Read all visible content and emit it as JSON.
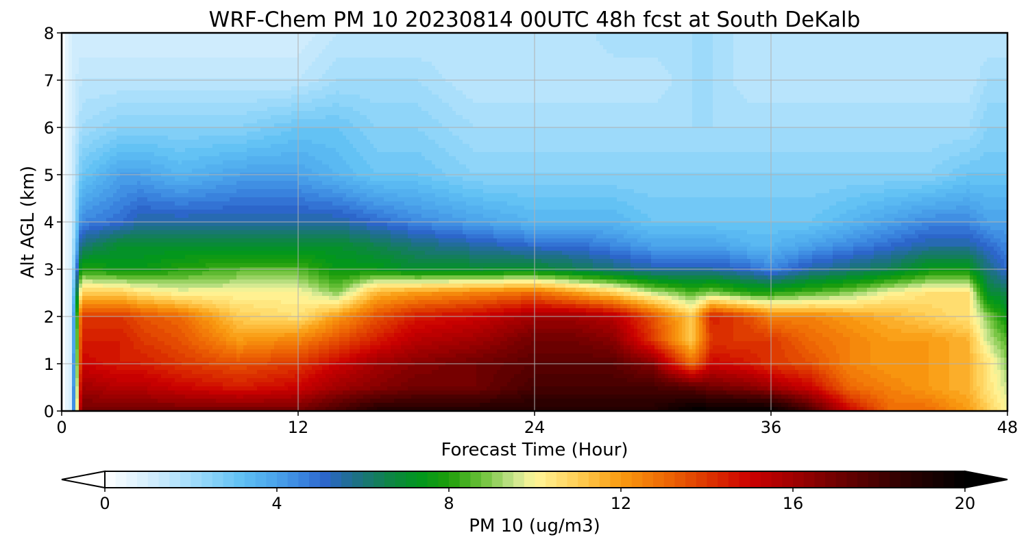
{
  "chart_data": {
    "type": "heatmap",
    "title": "WRF-Chem PM 10  20230814 00UTC 48h fcst at South DeKalb",
    "xlabel": "Forecast Time (Hour)",
    "ylabel": "Alt AGL (km)",
    "xlim": [
      0,
      48
    ],
    "ylim": [
      0,
      8
    ],
    "xticks": [
      0,
      12,
      24,
      36,
      48
    ],
    "yticks": [
      0,
      1,
      2,
      3,
      4,
      5,
      6,
      7,
      8
    ],
    "grid": true,
    "x_hours": [
      0,
      0.5,
      1,
      3,
      4,
      6,
      9,
      12,
      14,
      16,
      18,
      21,
      24,
      26,
      28,
      30,
      32,
      33,
      35,
      36,
      38,
      40,
      42,
      44,
      46,
      47,
      48
    ],
    "y_km": [
      0,
      0.5,
      1,
      1.5,
      2,
      2.5,
      3,
      3.5,
      4,
      5,
      6,
      7,
      8
    ],
    "values": [
      [
        0,
        1,
        17,
        17,
        17,
        17,
        17,
        17,
        18,
        19,
        19,
        19,
        19,
        19,
        19,
        19,
        20,
        20,
        20,
        20,
        18,
        15,
        13,
        13,
        12,
        11,
        10
      ],
      [
        0,
        1,
        16,
        15.5,
        15.5,
        15,
        14.5,
        15,
        16,
        16.5,
        17,
        17,
        18,
        18,
        18,
        18,
        17.5,
        17,
        16.5,
        16,
        15,
        13,
        12.5,
        12,
        11.5,
        10.5,
        9.5
      ],
      [
        0,
        1,
        15,
        14.5,
        14.5,
        14,
        13.5,
        14,
        15,
        16,
        16.5,
        17,
        17.5,
        17.5,
        17.5,
        16.5,
        13,
        15,
        14.5,
        14,
        13.5,
        12.5,
        12,
        12,
        11.5,
        10.5,
        9
      ],
      [
        0,
        1,
        14.5,
        14.5,
        14,
        13.5,
        12,
        12.5,
        13.5,
        14.5,
        15.5,
        16,
        17,
        17,
        16.5,
        14,
        11,
        14,
        14,
        14,
        13,
        12.5,
        12,
        12,
        11.5,
        9.5,
        8.5
      ],
      [
        0,
        1,
        14,
        14,
        13.5,
        13,
        11,
        10.5,
        12,
        13.5,
        14.5,
        15,
        16,
        16,
        15.5,
        13.5,
        11,
        14.5,
        13.5,
        12.5,
        12.5,
        12,
        11.5,
        11,
        10.5,
        9,
        7.5
      ],
      [
        0,
        1,
        11,
        11,
        10.5,
        10,
        10,
        10,
        9,
        11.5,
        12,
        12.5,
        13,
        12,
        11,
        9.5,
        8.5,
        9,
        8,
        8,
        8.5,
        9,
        10,
        10.5,
        10.5,
        7,
        6.5
      ],
      [
        0,
        1,
        8,
        7.5,
        7.5,
        8,
        8.5,
        8.5,
        7.5,
        7.5,
        7,
        7,
        7,
        6.5,
        6,
        5.5,
        5.5,
        5.5,
        5,
        4.5,
        5.5,
        6,
        6.5,
        7.5,
        7.5,
        6,
        5
      ],
      [
        0,
        1,
        6,
        7,
        7,
        7,
        7,
        7,
        7,
        6.5,
        6,
        5.5,
        5,
        5,
        4.5,
        4,
        4,
        4,
        3.5,
        3.5,
        4,
        4.5,
        5,
        5.5,
        5.5,
        5,
        4.5
      ],
      [
        0,
        1,
        4.5,
        5,
        5.5,
        5.5,
        5.5,
        5.5,
        5.5,
        5,
        4.5,
        4,
        3.5,
        3.5,
        3.5,
        3,
        3,
        3,
        3,
        3,
        3,
        3.5,
        4,
        4.5,
        4.5,
        4,
        4
      ],
      [
        0,
        1,
        3,
        4,
        4,
        3.5,
        4,
        4,
        3.5,
        3,
        3,
        2.5,
        2.5,
        2.5,
        2.5,
        2.5,
        2.5,
        2.5,
        2.5,
        2.5,
        2.5,
        2.5,
        2.5,
        2.5,
        3,
        3,
        3
      ],
      [
        0,
        1,
        2,
        2.5,
        2.5,
        2.5,
        2.5,
        3,
        3,
        2.5,
        2.5,
        2,
        2,
        2,
        2,
        2,
        2,
        2,
        2,
        2,
        2,
        2,
        2,
        2,
        2,
        2.5,
        2.5
      ],
      [
        0,
        1,
        1.5,
        1.5,
        1.5,
        1.5,
        1.5,
        1.5,
        2,
        2,
        2,
        1.5,
        1.5,
        1.5,
        1.5,
        1.5,
        2,
        2,
        1.5,
        1.5,
        1.5,
        1.5,
        1.5,
        1.5,
        1.5,
        2,
        2
      ],
      [
        0,
        1,
        1,
        1,
        1,
        1,
        1,
        1,
        1.5,
        1.5,
        1.5,
        1.5,
        1.5,
        1.5,
        2,
        2,
        2,
        2,
        1.5,
        1.5,
        1.5,
        1.5,
        1.5,
        1.5,
        1.5,
        1.5,
        1.5
      ]
    ],
    "colorbar": {
      "label": "PM 10  (ug/m3)",
      "min": 0,
      "max": 20,
      "ticks": [
        0,
        4,
        8,
        12,
        16,
        20
      ],
      "extend": "both",
      "levels": 80
    },
    "colormap": [
      [
        0,
        "#ffffff"
      ],
      [
        0.5,
        "#eaf7fe"
      ],
      [
        1.5,
        "#bfe6fc"
      ],
      [
        2.5,
        "#88d2f8"
      ],
      [
        3.2,
        "#5ec0f4"
      ],
      [
        4,
        "#4aa2ea"
      ],
      [
        4.6,
        "#3a84de"
      ],
      [
        5.1,
        "#2d66cc"
      ],
      [
        5.8,
        "#1f6f8a"
      ],
      [
        6.6,
        "#0f8448"
      ],
      [
        7.3,
        "#00961e"
      ],
      [
        8,
        "#1e9e0a"
      ],
      [
        8.8,
        "#70c23c"
      ],
      [
        9.5,
        "#c7e48e"
      ],
      [
        10,
        "#fff699"
      ],
      [
        11,
        "#ffce55"
      ],
      [
        12,
        "#f99b10"
      ],
      [
        13,
        "#ef6a05"
      ],
      [
        14,
        "#dd3600"
      ],
      [
        15,
        "#cc0000"
      ],
      [
        16,
        "#a10000"
      ],
      [
        17,
        "#700000"
      ],
      [
        18.5,
        "#300000"
      ],
      [
        20,
        "#000000"
      ]
    ]
  }
}
